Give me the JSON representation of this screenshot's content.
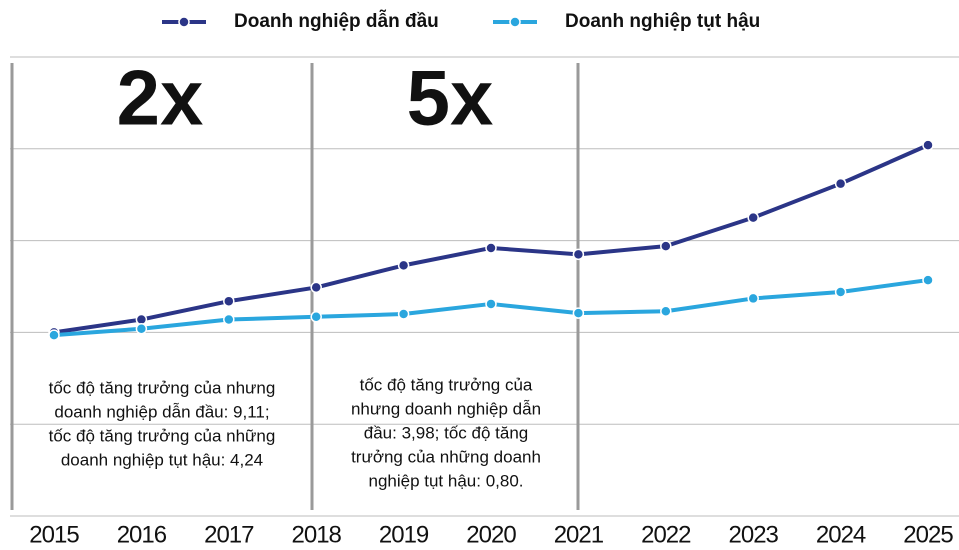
{
  "chart_data": {
    "type": "line",
    "categories": [
      "2015",
      "2016",
      "2017",
      "2018",
      "2019",
      "2020",
      "2021",
      "2022",
      "2023",
      "2024",
      "2025"
    ],
    "series": [
      {
        "name": "Doanh nghiệp dẫn đầu",
        "color": "#2b3587",
        "values": [
          2.0,
          2.14,
          2.34,
          2.49,
          2.73,
          2.92,
          2.85,
          2.94,
          3.25,
          3.62,
          4.04
        ]
      },
      {
        "name": "Doanh nghiệp tụt hậu",
        "color": "#2aa6de",
        "values": [
          1.97,
          2.04,
          2.14,
          2.17,
          2.2,
          2.31,
          2.21,
          2.23,
          2.37,
          2.44,
          2.57
        ]
      }
    ],
    "ylim": [
      0,
      5
    ],
    "yticks": [
      0,
      1,
      2,
      3,
      4,
      5
    ],
    "grid": true,
    "annotations": [
      {
        "label": "2x",
        "text": [
          "tốc độ tăng trưởng của nhưng",
          "doanh nghiệp dẫn đầu: 9,11;",
          "tốc độ tăng trưởng của những",
          "doanh nghiệp tụt hậu: 4,24"
        ]
      },
      {
        "label": "5x",
        "text": [
          "tốc độ tăng trưởng của",
          "nhưng doanh nghiệp dẫn",
          "đầu: 3,98; tốc độ tăng",
          "trưởng của những doanh",
          "nghiệp tụt hậu: 0,80."
        ]
      }
    ]
  }
}
